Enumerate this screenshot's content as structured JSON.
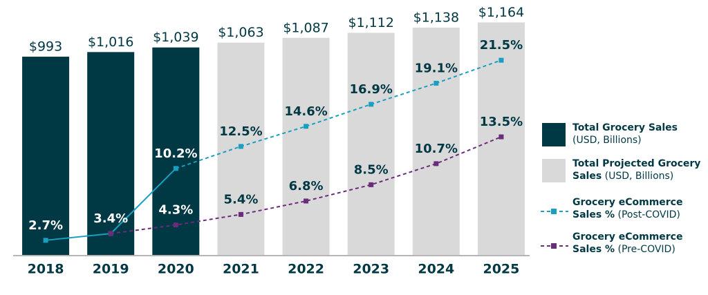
{
  "chart_data": {
    "type": "bar-line",
    "categories": [
      "2018",
      "2019",
      "2020",
      "2021",
      "2022",
      "2023",
      "2024",
      "2025"
    ],
    "ylim": [
      0,
      1200
    ],
    "y2lim": [
      1.1,
      26.2
    ],
    "series": [
      {
        "name": "Total Grocery Sales",
        "note": "(USD, Billions)",
        "type": "bar",
        "color": "#003844",
        "values": [
          993,
          1016,
          1039,
          null,
          null,
          null,
          null,
          null
        ],
        "value_labels": [
          "$993",
          "$1,016",
          "$1,039",
          null,
          null,
          null,
          null,
          null
        ]
      },
      {
        "name": "Total Projected Grocery Sales",
        "note": "(USD, Billions)",
        "type": "bar",
        "color": "#d9d9d9",
        "values": [
          null,
          null,
          null,
          1063,
          1087,
          1112,
          1138,
          1164
        ],
        "value_labels": [
          null,
          null,
          null,
          "$1,063",
          "$1,087",
          "$1,112",
          "$1,138",
          "$1,164"
        ]
      },
      {
        "name": "Grocery eCommerce Sales %",
        "note": "(Post-COVID)",
        "type": "line",
        "axis": "y2",
        "color": "#1a9fc0",
        "values": [
          2.7,
          3.4,
          10.2,
          12.5,
          14.6,
          16.9,
          19.1,
          21.5
        ],
        "value_labels": [
          "2.7%",
          "3.4%",
          "10.2%",
          "12.5%",
          "14.6%",
          "16.9%",
          "19.1%",
          "21.5%"
        ]
      },
      {
        "name": "Grocery eCommerce Sales %",
        "note": "(Pre-COVID)",
        "type": "line",
        "axis": "y2",
        "color": "#6b2c7a",
        "values": [
          null,
          3.4,
          4.3,
          5.4,
          6.8,
          8.5,
          10.7,
          13.5
        ],
        "value_labels": [
          null,
          null,
          "4.3%",
          "5.4%",
          "6.8%",
          "8.5%",
          "10.7%",
          "13.5%"
        ]
      }
    ]
  }
}
